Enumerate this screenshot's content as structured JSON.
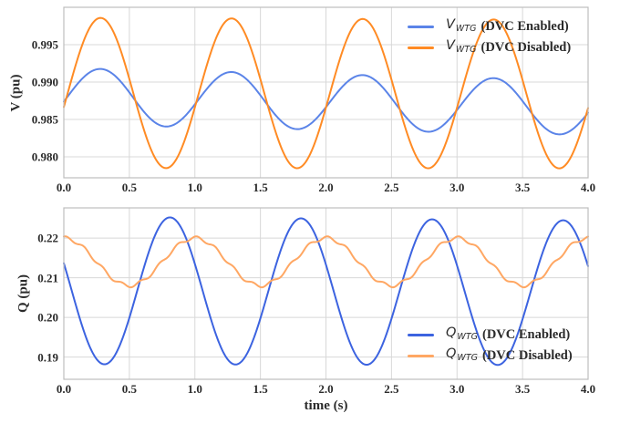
{
  "figure": {
    "background": "#ffffff",
    "grid_color": "#d8d8d8",
    "border_color": "#bdbdbd",
    "text_color": "#2b2b2b",
    "grid": true
  },
  "chart_data": [
    {
      "type": "line",
      "id": "voltage-subplot",
      "title": "",
      "xlabel": "",
      "ylabel": "V (pu)",
      "xlim": [
        0.0,
        4.0
      ],
      "ylim": [
        0.9772,
        1.0
      ],
      "xtick_values": [
        0.0,
        0.5,
        1.0,
        1.5,
        2.0,
        2.5,
        3.0,
        3.5,
        4.0
      ],
      "xtick_labels": [
        "0.0",
        "0.5",
        "1.0",
        "1.5",
        "2.0",
        "2.5",
        "3.0",
        "3.5",
        "4.0"
      ],
      "ytick_values": [
        0.98,
        0.985,
        0.99,
        0.995
      ],
      "ytick_labels": [
        "0.980",
        "0.985",
        "0.990",
        "0.995"
      ],
      "grid": true,
      "legend": {
        "position": "upper-right",
        "frame": false
      },
      "series": [
        {
          "label_full": "V_WTG (DVC Enabled)",
          "label_var": "V",
          "label_sub": "WTG",
          "label_rest": "(DVC Enabled)",
          "color": "#5b84e8",
          "model": {
            "kind": "sinusoid",
            "mean": 0.9881,
            "mean_drift_per_s": -0.00038,
            "amplitude": 0.00377,
            "amp_decay_per_s": 0.008,
            "period_s": 1.0,
            "first_peak_t": 0.28,
            "ripple_amplitude": 0,
            "ripple_freq_hz": 0,
            "t_start": 0.0,
            "t_end": 4.0
          },
          "key_points": {
            "start_value": 0.9874,
            "first_peak": 0.9918,
            "first_trough": 0.9843,
            "last_peak": 0.9908,
            "last_trough": 0.9837
          }
        },
        {
          "label_full": "V_WTG (DVC Disabled)",
          "label_var": "V",
          "label_sub": "WTG",
          "label_rest": "(DVC Disabled)",
          "color": "#ff8b24",
          "model": {
            "kind": "sinusoid",
            "mean": 0.98855,
            "mean_drift_per_s": -4e-05,
            "amplitude": 0.01005,
            "amp_decay_per_s": 0.003,
            "period_s": 1.0,
            "first_peak_t": 0.28,
            "ripple_amplitude": 0,
            "ripple_freq_hz": 0,
            "t_start": 0.0,
            "t_end": 4.0
          },
          "key_points": {
            "start_value": 0.9872,
            "first_peak": 0.9986,
            "first_trough": 0.9784,
            "last_peak": 0.9985,
            "last_trough": 0.9783
          }
        }
      ]
    },
    {
      "type": "line",
      "id": "reactive-power-subplot",
      "title": "",
      "xlabel": "time (s)",
      "ylabel": "Q (pu)",
      "xlim": [
        0.0,
        4.0
      ],
      "ylim": [
        0.1844,
        0.2276
      ],
      "xtick_values": [
        0.0,
        0.5,
        1.0,
        1.5,
        2.0,
        2.5,
        3.0,
        3.5,
        4.0
      ],
      "xtick_labels": [
        "0.0",
        "0.5",
        "1.0",
        "1.5",
        "2.0",
        "2.5",
        "3.0",
        "3.5",
        "4.0"
      ],
      "ytick_values": [
        0.19,
        0.2,
        0.21,
        0.22
      ],
      "ytick_labels": [
        "0.19",
        "0.20",
        "0.21",
        "0.22"
      ],
      "grid": true,
      "legend": {
        "position": "lower-right",
        "frame": false
      },
      "series": [
        {
          "label_full": "Q_WTG (DVC Enabled)",
          "label_var": "Q",
          "label_sub": "WTG",
          "label_rest": "(DVC Enabled)",
          "color": "#3c63e0",
          "model": {
            "kind": "sinusoid",
            "mean": 0.2068,
            "mean_drift_per_s": -0.00015,
            "amplitude": 0.0186,
            "amp_decay_per_s": 0.005,
            "period_s": 1.0,
            "first_peak_t": 0.81,
            "ripple_amplitude": 0,
            "ripple_freq_hz": 0,
            "t_start": 0.0,
            "t_end": 4.0
          },
          "key_points": {
            "start_value": 0.2136,
            "first_trough": 0.1882,
            "first_peak": 0.2254,
            "last_trough": 0.1879,
            "last_peak": 0.2245,
            "end_value": 0.2133
          }
        },
        {
          "label_full": "Q_WTG (DVC Disabled)",
          "label_var": "Q",
          "label_sub": "WTG",
          "label_rest": "(DVC Disabled)",
          "color": "#ffa763",
          "model": {
            "kind": "sinusoid",
            "mean": 0.214,
            "mean_drift_per_s": 0,
            "amplitude": 0.006,
            "amp_decay_per_s": 0,
            "period_s": 1.0,
            "first_peak_t": 1.0,
            "ripple_amplitude": 0.00045,
            "ripple_freq_hz": 7,
            "ripple_phase_rad": 1.0,
            "t_start": 0.0,
            "t_end": 4.0
          },
          "key_points": {
            "start_value": 0.22,
            "first_trough": 0.2081,
            "first_peak": 0.2202,
            "end_value": 0.2201
          }
        }
      ]
    }
  ]
}
